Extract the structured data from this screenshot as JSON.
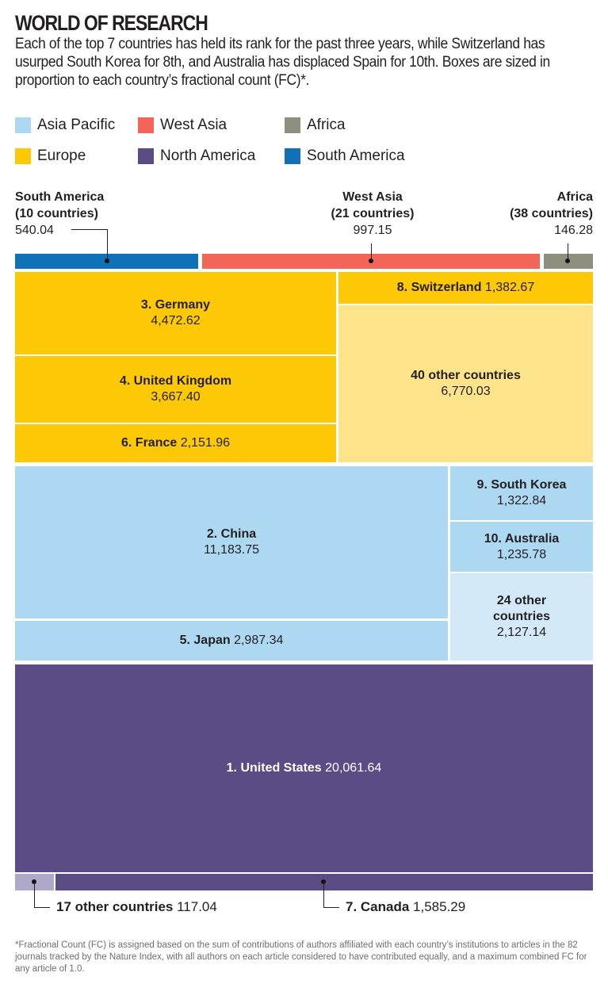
{
  "title": "WORLD OF RESEARCH",
  "subtitle": "Each of the top 7 countries has held its rank for the past three years, while Switzerland has usurped South Korea for 8th, and Australia has displaced Spain for 10th. Boxes are sized in proportion to each country’s fractional count (FC)*.",
  "legend": [
    {
      "label": "Asia Pacific",
      "color": "#acd8f2"
    },
    {
      "label": "West Asia",
      "color": "#f2665a"
    },
    {
      "label": "Africa",
      "color": "#8f8f7f"
    },
    {
      "label": "Europe",
      "color": "#fdc907"
    },
    {
      "label": "North America",
      "color": "#5b4c86"
    },
    {
      "label": "South America",
      "color": "#1070b8"
    }
  ],
  "footnote": "*Fractional Count (FC) is assigned based on the sum of contributions of authors affiliated with each country’s institutions to articles in the 82 journals tracked by the Nature Index, with all authors on each article considered to have contributed equally, and a maximum combined FC for any article of 1.0.",
  "chart_data": {
    "type": "treemap",
    "unit": "fractional count (FC)",
    "items": [
      {
        "label": "South America",
        "sub": "(10 countries)",
        "value": "540.04",
        "region": "South America",
        "color": "#1070b8"
      },
      {
        "label": "West Asia",
        "sub": "(21 countries)",
        "value": "997.15",
        "region": "West Asia",
        "color": "#f2665a"
      },
      {
        "label": "Africa",
        "sub": "(38 countries)",
        "value": "146.28",
        "region": "Africa",
        "color": "#8f8f7f"
      },
      {
        "label": "3. Germany",
        "value": "4,472.62",
        "region": "Europe",
        "color": "#fdc907"
      },
      {
        "label": "4. United Kingdom",
        "value": "3,667.40",
        "region": "Europe",
        "color": "#fdc907"
      },
      {
        "label": "6. France",
        "value": "2,151.96",
        "region": "Europe",
        "color": "#fdc907"
      },
      {
        "label": "8. Switzerland",
        "value": "1,382.67",
        "region": "Europe",
        "color": "#fdc907"
      },
      {
        "label": "40 other countries",
        "value": "6,770.03",
        "region": "Europe",
        "color": "#fde48a"
      },
      {
        "label": "2. China",
        "value": "11,183.75",
        "region": "Asia Pacific",
        "color": "#acd8f2"
      },
      {
        "label": "5. Japan",
        "value": "2,987.34",
        "region": "Asia Pacific",
        "color": "#acd8f2"
      },
      {
        "label": "9. South Korea",
        "value": "1,322.84",
        "region": "Asia Pacific",
        "color": "#acd8f2"
      },
      {
        "label": "10. Australia",
        "value": "1,235.78",
        "region": "Asia Pacific",
        "color": "#acd8f2"
      },
      {
        "label": "24 other countries",
        "value": "2,127.14",
        "region": "Asia Pacific",
        "color": "#d4e9f8"
      },
      {
        "label": "1. United States",
        "value": "20,061.64",
        "region": "North America",
        "color": "#5b4c86"
      },
      {
        "label": "17 other countries",
        "value": "117.04",
        "region": "North America",
        "color": "#b0a8c8"
      },
      {
        "label": "7. Canada",
        "value": "1,585.29",
        "region": "North America",
        "color": "#5b4c86"
      }
    ]
  }
}
